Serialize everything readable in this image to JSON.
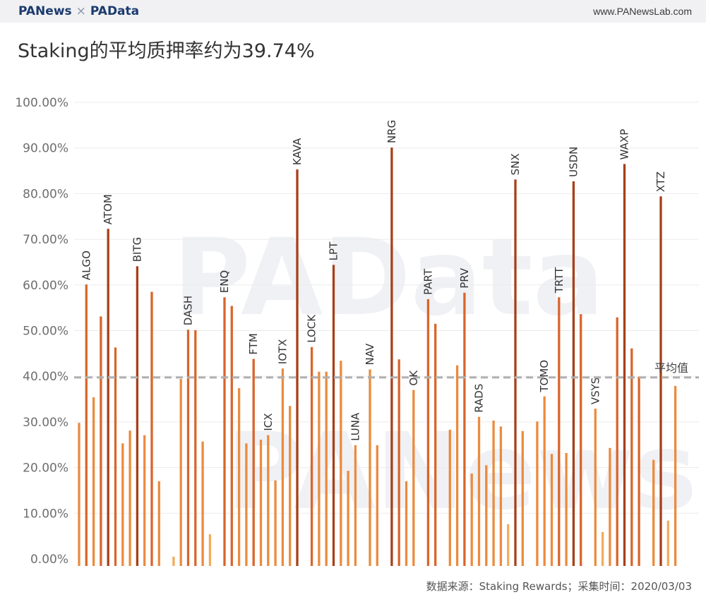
{
  "header": {
    "brand_left": "PANews",
    "separator": "×",
    "brand_right": "PAData",
    "site": "www.PANewsLab.com"
  },
  "title": "Staking的平均质押率约为39.74%",
  "footer": "数据来源：Staking Rewards；采集时间：2020/03/03",
  "watermarks": [
    "PAData",
    "PANews"
  ],
  "colors": {
    "dark": "#a6401a",
    "mid": "#d9652b",
    "light": "#eb8b3e",
    "pale": "#f2ac5e",
    "grid": "#ebebeb",
    "avg": "#b0b0b0"
  },
  "chart_data": {
    "type": "bar",
    "title": "Staking的平均质押率约为39.74%",
    "ylim": [
      0,
      100
    ],
    "yticks": [
      "0.00%",
      "10.00%",
      "20.00%",
      "30.00%",
      "40.00%",
      "50.00%",
      "60.00%",
      "70.00%",
      "80.00%",
      "90.00%",
      "100.00%"
    ],
    "grid": true,
    "average": {
      "value": 39.74,
      "label": "平均值"
    },
    "labels": [
      "ALGO",
      "ATOM",
      "BITG",
      "DASH",
      "ENQ",
      "FTM",
      "ICX",
      "IOTX",
      "KAVA",
      "LOCK",
      "LPT",
      "LUNA",
      "NAV",
      "NRG",
      "OK",
      "PART",
      "PRV",
      "RADS",
      "SNX",
      "TOMO",
      "TRTT",
      "USDN",
      "VSYS",
      "WAXP",
      "XTZ"
    ],
    "bars": [
      {
        "label": "",
        "value": 29.8,
        "shade": "light"
      },
      {
        "label": "ALGO",
        "value": 60.1,
        "shade": "mid"
      },
      {
        "label": "",
        "value": 35.4,
        "shade": "light"
      },
      {
        "label": "",
        "value": 53.1,
        "shade": "mid"
      },
      {
        "label": "ATOM",
        "value": 72.3,
        "shade": "dark"
      },
      {
        "label": "",
        "value": 46.3,
        "shade": "mid"
      },
      {
        "label": "",
        "value": 25.3,
        "shade": "light"
      },
      {
        "label": "",
        "value": 28.1,
        "shade": "light"
      },
      {
        "label": "BITG",
        "value": 64.1,
        "shade": "dark"
      },
      {
        "label": "",
        "value": 27.1,
        "shade": "light"
      },
      {
        "label": "",
        "value": 58.5,
        "shade": "mid"
      },
      {
        "label": "",
        "value": 17.0,
        "shade": "light"
      },
      {
        "label": "",
        "value": null,
        "shade": "light"
      },
      {
        "label": "",
        "value": 0.5,
        "shade": "pale"
      },
      {
        "label": "",
        "value": 39.4,
        "shade": "light"
      },
      {
        "label": "DASH",
        "value": 50.2,
        "shade": "mid"
      },
      {
        "label": "",
        "value": 50.1,
        "shade": "mid"
      },
      {
        "label": "",
        "value": 25.7,
        "shade": "light"
      },
      {
        "label": "",
        "value": 5.4,
        "shade": "pale"
      },
      {
        "label": "",
        "value": null,
        "shade": "light"
      },
      {
        "label": "ENQ",
        "value": 57.3,
        "shade": "mid"
      },
      {
        "label": "",
        "value": 55.4,
        "shade": "mid"
      },
      {
        "label": "",
        "value": 37.4,
        "shade": "light"
      },
      {
        "label": "",
        "value": 25.3,
        "shade": "light"
      },
      {
        "label": "FTM",
        "value": 43.8,
        "shade": "mid"
      },
      {
        "label": "",
        "value": 26.1,
        "shade": "light"
      },
      {
        "label": "ICX",
        "value": 27.1,
        "shade": "light"
      },
      {
        "label": "",
        "value": 17.2,
        "shade": "light"
      },
      {
        "label": "IOTX",
        "value": 41.7,
        "shade": "light"
      },
      {
        "label": "",
        "value": 33.5,
        "shade": "light"
      },
      {
        "label": "KAVA",
        "value": 85.3,
        "shade": "dark"
      },
      {
        "label": "",
        "value": null,
        "shade": "light"
      },
      {
        "label": "LOCK",
        "value": 46.4,
        "shade": "mid"
      },
      {
        "label": "",
        "value": 41.0,
        "shade": "light"
      },
      {
        "label": "",
        "value": 41.0,
        "shade": "light"
      },
      {
        "label": "LPT",
        "value": 64.4,
        "shade": "dark"
      },
      {
        "label": "",
        "value": 43.4,
        "shade": "light"
      },
      {
        "label": "",
        "value": 19.3,
        "shade": "light"
      },
      {
        "label": "LUNA",
        "value": 24.9,
        "shade": "light"
      },
      {
        "label": "",
        "value": null,
        "shade": "light"
      },
      {
        "label": "NAV",
        "value": 41.5,
        "shade": "light"
      },
      {
        "label": "",
        "value": 24.9,
        "shade": "light"
      },
      {
        "label": "",
        "value": null,
        "shade": "light"
      },
      {
        "label": "NRG",
        "value": 90.1,
        "shade": "dark"
      },
      {
        "label": "",
        "value": 43.7,
        "shade": "mid"
      },
      {
        "label": "",
        "value": 17.0,
        "shade": "light"
      },
      {
        "label": "OK",
        "value": 37.0,
        "shade": "light"
      },
      {
        "label": "",
        "value": null,
        "shade": "light"
      },
      {
        "label": "PART",
        "value": 56.9,
        "shade": "mid"
      },
      {
        "label": "",
        "value": 51.5,
        "shade": "mid"
      },
      {
        "label": "",
        "value": null,
        "shade": "light"
      },
      {
        "label": "",
        "value": 28.3,
        "shade": "light"
      },
      {
        "label": "",
        "value": 42.4,
        "shade": "light"
      },
      {
        "label": "PRV",
        "value": 58.3,
        "shade": "mid"
      },
      {
        "label": "",
        "value": 18.7,
        "shade": "light"
      },
      {
        "label": "RADS",
        "value": 31.1,
        "shade": "light"
      },
      {
        "label": "",
        "value": 20.5,
        "shade": "light"
      },
      {
        "label": "",
        "value": 30.3,
        "shade": "light"
      },
      {
        "label": "",
        "value": 29.0,
        "shade": "light"
      },
      {
        "label": "",
        "value": 7.6,
        "shade": "pale"
      },
      {
        "label": "SNX",
        "value": 83.1,
        "shade": "dark"
      },
      {
        "label": "",
        "value": 28.0,
        "shade": "light"
      },
      {
        "label": "",
        "value": null,
        "shade": "light"
      },
      {
        "label": "",
        "value": 30.1,
        "shade": "light"
      },
      {
        "label": "TOMO",
        "value": 35.6,
        "shade": "light"
      },
      {
        "label": "",
        "value": 23.0,
        "shade": "light"
      },
      {
        "label": "TRTT",
        "value": 57.3,
        "shade": "mid"
      },
      {
        "label": "",
        "value": 23.2,
        "shade": "light"
      },
      {
        "label": "USDN",
        "value": 82.7,
        "shade": "dark"
      },
      {
        "label": "",
        "value": 53.6,
        "shade": "mid"
      },
      {
        "label": "",
        "value": null,
        "shade": "light"
      },
      {
        "label": "VSYS",
        "value": 32.9,
        "shade": "light"
      },
      {
        "label": "",
        "value": 5.9,
        "shade": "pale"
      },
      {
        "label": "",
        "value": 24.3,
        "shade": "light"
      },
      {
        "label": "",
        "value": 52.9,
        "shade": "mid"
      },
      {
        "label": "WAXP",
        "value": 86.5,
        "shade": "dark"
      },
      {
        "label": "",
        "value": 46.1,
        "shade": "mid"
      },
      {
        "label": "",
        "value": 39.9,
        "shade": "mid"
      },
      {
        "label": "",
        "value": null,
        "shade": "light"
      },
      {
        "label": "",
        "value": 21.7,
        "shade": "light"
      },
      {
        "label": "XTZ",
        "value": 79.4,
        "shade": "dark"
      },
      {
        "label": "",
        "value": 8.4,
        "shade": "pale"
      },
      {
        "label": "",
        "value": 37.9,
        "shade": "light"
      }
    ]
  }
}
